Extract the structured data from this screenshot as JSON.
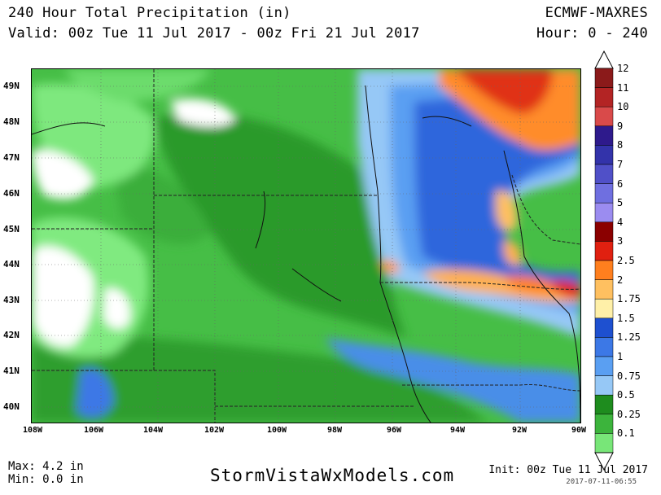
{
  "header": {
    "title": "240 Hour Total Precipitation (in)",
    "valid": "Valid: 00z Tue 11 Jul 2017 - 00z Fri 21 Jul 2017",
    "model": "ECMWF-MAXRES",
    "hours": "Hour: 0 - 240"
  },
  "map": {
    "lat_labels": [
      "49N",
      "48N",
      "47N",
      "46N",
      "45N",
      "44N",
      "43N",
      "42N",
      "41N",
      "40N"
    ],
    "lon_labels": [
      "108W",
      "106W",
      "104W",
      "102W",
      "100W",
      "98W",
      "96W",
      "94W",
      "92W",
      "90W"
    ]
  },
  "colorbar": {
    "levels": [
      {
        "label": "12",
        "color": "#8b1a1a"
      },
      {
        "label": "11",
        "color": "#b32424"
      },
      {
        "label": "10",
        "color": "#d94a4a"
      },
      {
        "label": "9",
        "color": "#2e1a8c"
      },
      {
        "label": "8",
        "color": "#3333aa"
      },
      {
        "label": "7",
        "color": "#5050c8"
      },
      {
        "label": "6",
        "color": "#6f6fe0"
      },
      {
        "label": "5",
        "color": "#9b8cf0"
      },
      {
        "label": "4",
        "color": "#8b0000"
      },
      {
        "label": "3",
        "color": "#e02010"
      },
      {
        "label": "2.5",
        "color": "#ff7f1e"
      },
      {
        "label": "2",
        "color": "#ffc060"
      },
      {
        "label": "1.75",
        "color": "#fff0a8"
      },
      {
        "label": "1.5",
        "color": "#1e50d0"
      },
      {
        "label": "1.25",
        "color": "#3c78e6"
      },
      {
        "label": "1",
        "color": "#5a9ff2"
      },
      {
        "label": "0.75",
        "color": "#96c8f6"
      },
      {
        "label": "0.5",
        "color": "#1e8c1e"
      },
      {
        "label": "0.25",
        "color": "#3cb43c"
      },
      {
        "label": "0.1",
        "color": "#78e678"
      }
    ]
  },
  "footer": {
    "max": "Max: 4.2 in",
    "min": "Min: 0.0 in",
    "site": "StormVistaWxModels.com",
    "init": "Init: 00z Tue 11 Jul 2017",
    "stamp": "2017-07-11-06:55"
  }
}
